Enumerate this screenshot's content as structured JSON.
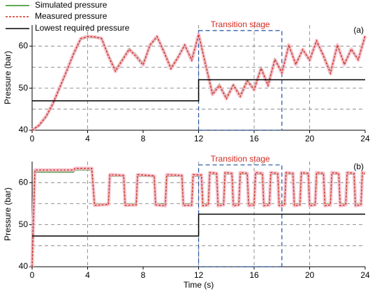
{
  "chart_data": [
    {
      "type": "line",
      "ylabel": "Pressure (bar)",
      "panel_label": "(a)",
      "legend": "upper left",
      "annotation": {
        "text": "Transition stage",
        "x": [
          12,
          18
        ],
        "y": 63.7
      },
      "xlim": [
        0,
        24
      ],
      "xticks": [
        0,
        4,
        8,
        12,
        16,
        20,
        24
      ],
      "xgrid": [
        4,
        12,
        16,
        20
      ],
      "ylim": [
        40,
        65
      ],
      "yticks": [
        40,
        50,
        60
      ],
      "ygrid": [
        45,
        50,
        55,
        60
      ],
      "x": [
        0,
        0.5,
        1,
        1.5,
        2,
        2.5,
        3,
        3.5,
        4,
        4.5,
        5,
        5.5,
        6,
        6.5,
        7,
        7.5,
        8,
        8.5,
        9,
        9.5,
        10,
        10.5,
        11,
        11.5,
        12,
        12.5,
        13,
        13.5,
        14,
        14.5,
        15,
        15.5,
        16,
        16.5,
        17,
        17.5,
        18,
        18.5,
        19,
        19.5,
        20,
        20.5,
        21,
        21.5,
        22,
        22.5,
        23,
        23.5,
        24
      ],
      "series": [
        {
          "name": "Simulated pressure",
          "color": "#2e8b22",
          "dash": false,
          "values": [
            40,
            41,
            43,
            46,
            50,
            54,
            58,
            61.5,
            62,
            62,
            62,
            58,
            54.5,
            57,
            59.5,
            58,
            56,
            60,
            62,
            59,
            55,
            57.5,
            60,
            57,
            62.5,
            56,
            49,
            51,
            48,
            51,
            48.5,
            52,
            50,
            55,
            51,
            57,
            54,
            60,
            56,
            59,
            57,
            61,
            58,
            54,
            60,
            56,
            59,
            57,
            62
          ]
        },
        {
          "name": "Measured pressure",
          "color": "#d42a1f",
          "dash": true,
          "values": [
            40,
            41.2,
            43.3,
            46.4,
            50.3,
            54.2,
            58.3,
            61.8,
            62.3,
            62.2,
            61.8,
            57.6,
            54,
            56.6,
            59.2,
            57.5,
            55.5,
            60.3,
            62.3,
            58.6,
            54.6,
            57.2,
            60.3,
            56.6,
            62.8,
            55.6,
            48.5,
            50.6,
            47.5,
            50.7,
            48,
            51.7,
            49.6,
            54.7,
            50.6,
            56.8,
            53.6,
            60.3,
            55.6,
            59.2,
            56.6,
            61.3,
            57.6,
            53.5,
            60.3,
            55.6,
            59.3,
            56.7,
            62.5
          ]
        },
        {
          "name": "Lowest required pressure",
          "color": "#000000",
          "dash": false,
          "x": [
            0,
            12,
            12,
            24
          ],
          "values": [
            47,
            47,
            52,
            52
          ]
        }
      ]
    },
    {
      "type": "line",
      "ylabel": "Pressure (bar)",
      "xlabel": "Time (s)",
      "panel_label": "(b)",
      "annotation": {
        "text": "Transition stage",
        "x": [
          12,
          18
        ],
        "y": 64.2
      },
      "xlim": [
        0,
        24
      ],
      "xticks": [
        0,
        4,
        8,
        12,
        16,
        20,
        24
      ],
      "xgrid": [
        4,
        12,
        16,
        20
      ],
      "ylim": [
        40,
        65
      ],
      "yticks": [
        40,
        50,
        60
      ],
      "ygrid": [
        45,
        50,
        55,
        60
      ],
      "x": [
        0,
        0.2,
        3,
        3.1,
        4.3,
        4.5,
        5.5,
        5.6,
        6.6,
        6.7,
        7.5,
        7.6,
        8.8,
        8.9,
        9.6,
        9.7,
        10.8,
        10.9,
        11.5,
        11.6,
        12.2,
        12.3,
        12.7,
        12.8,
        13.3,
        13.4,
        13.8,
        13.9,
        14.4,
        14.5,
        14.9,
        15,
        15.5,
        15.6,
        16,
        16.1,
        16.6,
        16.7,
        17.1,
        17.2,
        17.7,
        17.8,
        18.2,
        18.3,
        18.8,
        18.9,
        19.3,
        19.4,
        19.9,
        20,
        20.4,
        20.5,
        21,
        21.1,
        21.5,
        21.6,
        22.1,
        22.2,
        22.6,
        22.7,
        23.2,
        23.3,
        23.7,
        23.8,
        24
      ],
      "series": [
        {
          "color": "#2e8b22",
          "dash": false,
          "values": [
            40,
            62.5,
            62.5,
            63,
            63,
            55,
            55,
            61.5,
            61.5,
            55,
            55,
            61.5,
            61.5,
            55,
            55,
            61.5,
            61.5,
            55,
            55,
            61.5,
            61.5,
            55,
            55,
            62,
            62,
            55,
            55,
            62,
            62,
            55,
            55,
            62,
            62,
            55,
            55,
            62,
            62,
            55,
            55,
            62,
            62,
            55,
            55,
            62,
            62,
            55,
            55,
            62,
            62,
            55,
            55,
            62,
            62,
            55,
            55,
            62,
            62,
            55,
            55,
            62,
            62,
            55,
            55,
            62,
            62
          ]
        },
        {
          "color": "#d42a1f",
          "dash": true,
          "values": [
            40,
            63,
            63,
            63.4,
            63.4,
            54.6,
            54.8,
            61.9,
            61.7,
            54.6,
            54.7,
            61.9,
            61.6,
            54.7,
            54.5,
            61.9,
            61.7,
            54.6,
            54.6,
            61.9,
            61.8,
            54.5,
            54.7,
            62.4,
            62.2,
            54.5,
            54.7,
            62.4,
            62.2,
            54.5,
            54.7,
            62.4,
            62.2,
            54.5,
            54.7,
            62.4,
            62.2,
            54.5,
            54.7,
            62.4,
            62.2,
            54.5,
            54.7,
            62.4,
            62.2,
            54.5,
            54.7,
            62.4,
            62.2,
            54.5,
            54.7,
            62.4,
            62.2,
            54.5,
            54.7,
            62.4,
            62.2,
            54.5,
            54.7,
            62.4,
            62.2,
            54.5,
            54.7,
            62.4,
            62.2
          ]
        },
        {
          "color": "#000000",
          "dash": false,
          "x": [
            0,
            12,
            12,
            24
          ],
          "values": [
            47.3,
            47.3,
            52.5,
            52.5
          ]
        }
      ]
    }
  ]
}
